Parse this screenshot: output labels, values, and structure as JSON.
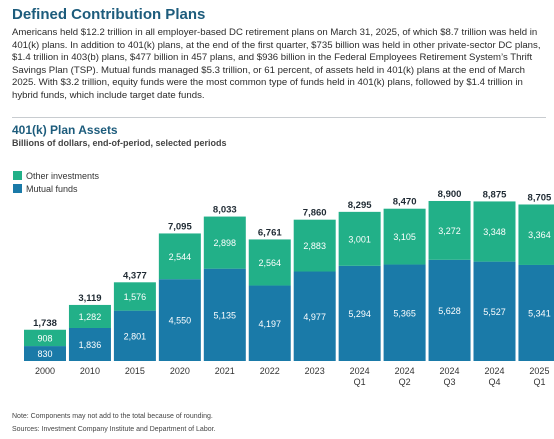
{
  "header": {
    "title": "Defined Contribution Plans",
    "intro": "Americans held $12.2 trillion in all employer-based DC retirement plans on March 31, 2025, of which $8.7 trillion was held in 401(k) plans. In addition to 401(k) plans, at the end of the first quarter, $735 billion was held in other private-sector DC plans, $1.4 trillion in 403(b) plans, $477 billion in 457 plans, and $936 billion in the Federal Employees Retirement System’s Thrift Savings Plan (TSP). Mutual funds managed $5.3 trillion, or 61 percent, of assets held in 401(k) plans at the end of March 2025. With $3.2 trillion, equity funds were the most common type of funds held in 401(k) plans, followed by $1.4 trillion in hybrid funds, which include target date funds."
  },
  "chart_data": {
    "type": "bar",
    "stacked": true,
    "title": "401(k) Plan Assets",
    "subtitle": "Billions of dollars, end-of-period, selected periods",
    "categories": [
      "2000",
      "2010",
      "2015",
      "2020",
      "2021",
      "2022",
      "2023",
      "2024 Q1",
      "2024 Q2",
      "2024 Q3",
      "2024 Q4",
      "2025 Q1"
    ],
    "series": [
      {
        "name": "Mutual funds",
        "color": "#1a7aa8",
        "values": [
          830,
          1836,
          2801,
          4550,
          5135,
          4197,
          4977,
          5294,
          5365,
          5628,
          5527,
          5341
        ]
      },
      {
        "name": "Other investments",
        "color": "#22b088",
        "values": [
          908,
          1282,
          1576,
          2544,
          2898,
          2564,
          2883,
          3001,
          3105,
          3272,
          3348,
          3364
        ]
      }
    ],
    "totals": [
      1738,
      3119,
      4377,
      7095,
      8033,
      6761,
      7860,
      8295,
      8470,
      8900,
      8875,
      8705
    ],
    "value_labels": {
      "Mutual funds": [
        "830",
        "1,836",
        "2,801",
        "4,550",
        "5,135",
        "4,197",
        "4,977",
        "5,294",
        "5,365",
        "5,628",
        "5,527",
        "5,341"
      ],
      "Other investments": [
        "908",
        "1,282",
        "1,576",
        "2,544",
        "2,898",
        "2,564",
        "2,883",
        "3,001",
        "3,105",
        "3,272",
        "3,348",
        "3,364"
      ],
      "totals": [
        "1,738",
        "3,119",
        "4,377",
        "7,095",
        "8,033",
        "6,761",
        "7,860",
        "8,295",
        "8,470",
        "8,900",
        "8,875",
        "8,705"
      ]
    },
    "ylim": [
      0,
      9000
    ],
    "grid": false,
    "legend_position": "top-left"
  },
  "legend": {
    "items": [
      {
        "label": "Other investments",
        "color": "#22b088"
      },
      {
        "label": "Mutual funds",
        "color": "#1a7aa8"
      }
    ]
  },
  "notes": {
    "note": "Note: Components may not add to the total because of rounding.",
    "sources": "Sources: Investment Company Institute and Department of Labor."
  }
}
